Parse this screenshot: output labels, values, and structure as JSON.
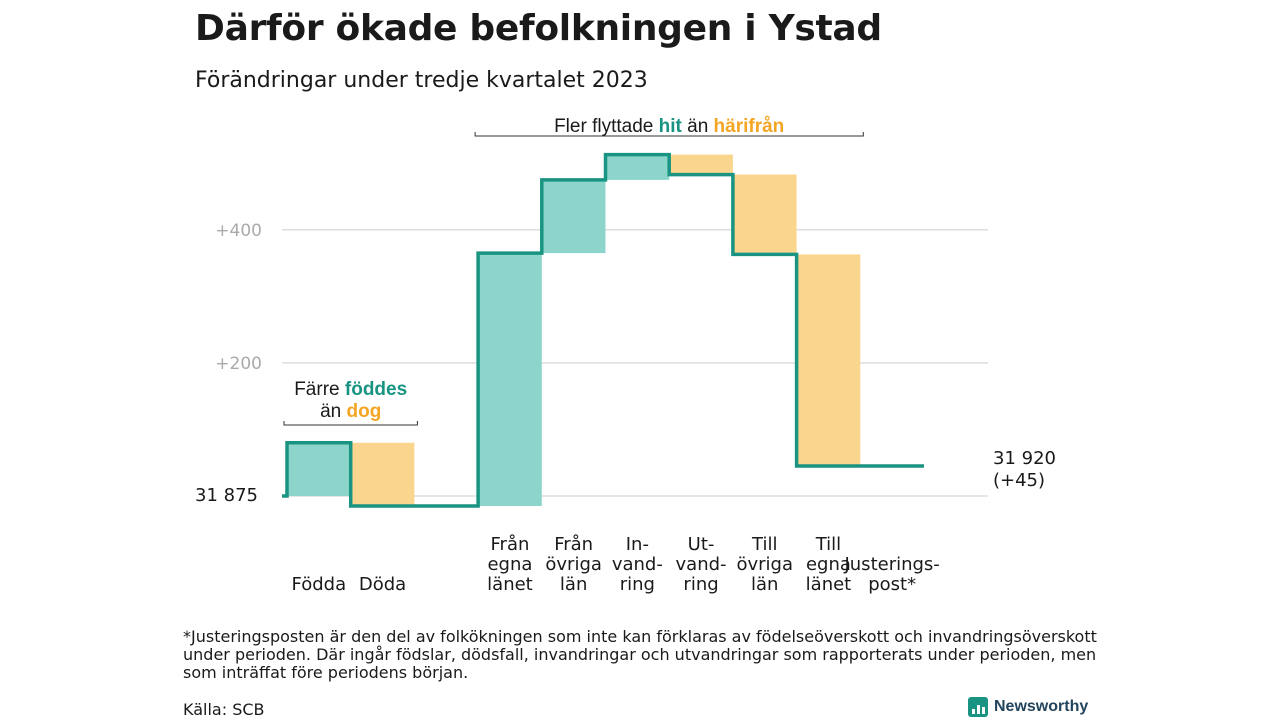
{
  "title": "Därför ökade befolkningen i Ystad",
  "subtitle": "Förändringar under tredje kvartalet 2023",
  "footnote": "*Justeringsposten är den del av folkökningen som inte kan förklaras av födelseöverskott och invandringsöverskott under perioden. Där ingår födslar, dödsfall, invandringar och utvandringar som rapporterats under perioden, men som inträffat före periodens början.",
  "source": "Källa: SCB",
  "brand": "Newsworthy",
  "colors": {
    "increase_fill": "#8dd5cb",
    "decrease_fill": "#fad58d",
    "line": "#1a9482",
    "accent_teal": "#1a9482",
    "accent_orange": "#f5a524",
    "grid": "#dddddd",
    "tick": "#aaaaaa"
  },
  "chart_data": {
    "type": "waterfall",
    "start_label": "31  875",
    "start_value": 0,
    "end_label_line1": "31 920",
    "end_label_line2": "(+45)",
    "yticks": [
      {
        "value": 200,
        "label": "+200"
      },
      {
        "value": 400,
        "label": "+400"
      }
    ],
    "ylim": [
      -40,
      560
    ],
    "steps": [
      {
        "lines": [
          "Födda"
        ],
        "value": 80,
        "kind": "increase"
      },
      {
        "lines": [
          "Döda"
        ],
        "value": -95,
        "kind": "decrease"
      },
      {
        "lines": [
          ""
        ],
        "value": 0,
        "kind": "gap"
      },
      {
        "lines": [
          "Från",
          "egna",
          "länet"
        ],
        "value": 380,
        "kind": "increase"
      },
      {
        "lines": [
          "Från",
          "övriga",
          "län"
        ],
        "value": 110,
        "kind": "increase"
      },
      {
        "lines": [
          "In-",
          "vand-",
          "ring"
        ],
        "value": 38,
        "kind": "increase"
      },
      {
        "lines": [
          "Ut-",
          "vand-",
          "ring"
        ],
        "value": -30,
        "kind": "decrease"
      },
      {
        "lines": [
          "Till",
          "övriga",
          "län"
        ],
        "value": -120,
        "kind": "decrease"
      },
      {
        "lines": [
          "Till",
          "egna",
          "länet"
        ],
        "value": -318,
        "kind": "decrease"
      },
      {
        "lines": [
          "Justerings-",
          "post*"
        ],
        "value": 0,
        "kind": "adjustment"
      }
    ],
    "annotations": [
      {
        "start_step": 0,
        "end_step": 1,
        "lines": [
          [
            {
              "t": "Färre ",
              "c": "dark"
            },
            {
              "t": "föddes",
              "c": "teal"
            }
          ],
          [
            {
              "t": "än ",
              "c": "dark"
            },
            {
              "t": "dog",
              "c": "orange"
            }
          ]
        ]
      },
      {
        "start_step": 3,
        "end_step": 8,
        "lines": [
          [
            {
              "t": "Fler flyttade ",
              "c": "dark"
            },
            {
              "t": "hit",
              "c": "teal"
            },
            {
              "t": "  än ",
              "c": "dark"
            },
            {
              "t": "härifrån",
              "c": "orange"
            }
          ]
        ]
      }
    ]
  }
}
